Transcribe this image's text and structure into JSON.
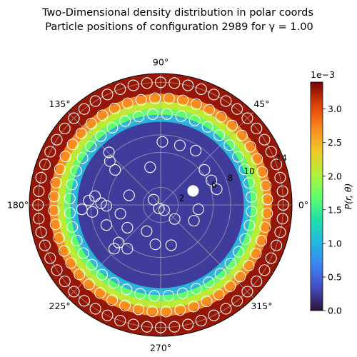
{
  "chart_data": {
    "type": "heatmap",
    "projection": "polar",
    "title_line1": "Two-Dimensional density distribution in polar coords",
    "title_line2": "Particle positions of configuration 2989 for γ = 1.00",
    "angle_ticks": [
      "0°",
      "45°",
      "90°",
      "135°",
      "180°",
      "225°",
      "270°",
      "315°"
    ],
    "angle_tick_values_deg": [
      0,
      45,
      90,
      135,
      180,
      225,
      270,
      315
    ],
    "radial_ticks": [
      "2",
      "6",
      "8",
      "10",
      "14"
    ],
    "radial_tick_values": [
      2,
      6,
      8,
      10,
      14
    ],
    "rlim": [
      0,
      15
    ],
    "grid": true,
    "colormap": "turbo",
    "colorbar": {
      "label": "P(r, θ)",
      "multiplier": "1e−3",
      "ticks": [
        "0.0",
        "0.5",
        "1.0",
        "1.5",
        "2.0",
        "2.5",
        "3.0"
      ],
      "tick_values": [
        0.0,
        0.5,
        1.0,
        1.5,
        2.0,
        2.5,
        3.0
      ],
      "range": [
        0.0,
        3.4
      ]
    },
    "density_by_radius": [
      {
        "r_min": 0,
        "r_max": 9.5,
        "value": 0.25
      },
      {
        "r_min": 9.5,
        "r_max": 10.3,
        "value": 1.0
      },
      {
        "r_min": 10.3,
        "r_max": 11.0,
        "value": 1.7
      },
      {
        "r_min": 11.0,
        "r_max": 11.8,
        "value": 2.1
      },
      {
        "r_min": 11.8,
        "r_max": 12.7,
        "value": 2.7
      },
      {
        "r_min": 12.7,
        "r_max": 15.0,
        "value": 3.3
      }
    ],
    "particle_groups": [
      {
        "r": 14.0,
        "count": 56,
        "offset_deg": 0
      },
      {
        "r": 12.2,
        "count": 48,
        "offset_deg": 3
      },
      {
        "r": 10.4,
        "count": 40,
        "offset_deg": 5
      }
    ],
    "interior_particles_xy": [
      [
        -8.2,
        0.5
      ],
      [
        -7.5,
        1.0
      ],
      [
        -6.8,
        0.2
      ],
      [
        -7.8,
        -0.8
      ],
      [
        -9.0,
        -0.5
      ],
      [
        -6.2,
        -0.1
      ],
      [
        -4.6,
        -1.0
      ],
      [
        -3.6,
        1.1
      ],
      [
        -0.8,
        0.6
      ],
      [
        -0.2,
        -0.4
      ],
      [
        0.4,
        -0.6
      ],
      [
        4.3,
        -0.5
      ],
      [
        1.6,
        -1.6
      ],
      [
        -1.6,
        -3.0
      ],
      [
        -3.8,
        -2.6
      ],
      [
        -6.2,
        -2.3
      ],
      [
        -4.8,
        -4.3
      ],
      [
        -3.8,
        -5.0
      ],
      [
        -5.3,
        -5.0
      ],
      [
        -0.6,
        -4.5
      ],
      [
        1.2,
        -4.6
      ],
      [
        3.8,
        -1.8
      ],
      [
        0.2,
        7.2
      ],
      [
        2.2,
        6.8
      ],
      [
        -5.8,
        5.0
      ],
      [
        -5.2,
        4.0
      ],
      [
        4.0,
        6.2
      ],
      [
        5.0,
        4.0
      ],
      [
        5.8,
        2.8
      ],
      [
        -1.2,
        4.3
      ],
      [
        -5.9,
        6.0
      ],
      [
        6.4,
        1.8
      ]
    ],
    "highlighted_particle_xy": [
      3.7,
      1.6
    ],
    "highlighted_color": "#ffffff"
  }
}
